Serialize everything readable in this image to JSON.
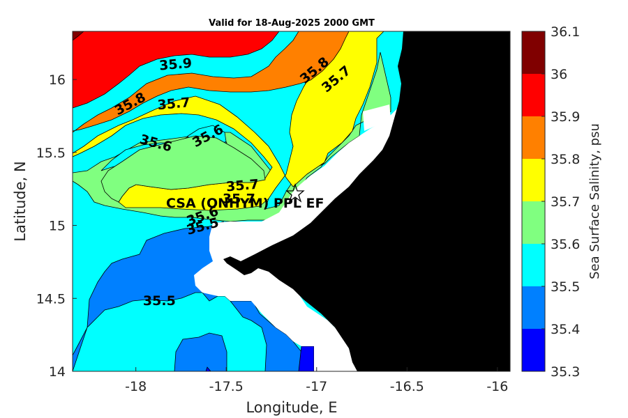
{
  "title": "Valid for 18-Aug-2025 2000 GMT",
  "chart_data": {
    "type": "heatmap",
    "title": "Valid for 18-Aug-2025 2000 GMT",
    "xlabel": "Longitude, E",
    "ylabel": "Latitude, N",
    "xlim": [
      -18.35,
      -15.93
    ],
    "ylim": [
      14.0,
      16.33
    ],
    "x_ticks": [
      "-18",
      "-17.5",
      "-17",
      "-16.5",
      "-16"
    ],
    "y_ticks": [
      "14",
      "14.5",
      "15",
      "15.5",
      "16"
    ],
    "colorbar": {
      "label": "Sea Surface Salinity, psu",
      "ticks": [
        "35.3",
        "35.4",
        "35.5",
        "35.6",
        "35.7",
        "35.8",
        "35.9",
        "36",
        "36.1"
      ],
      "bins": [
        {
          "from": 35.3,
          "to": 35.4,
          "color": "#0000ff"
        },
        {
          "from": 35.4,
          "to": 35.5,
          "color": "#0080ff"
        },
        {
          "from": 35.5,
          "to": 35.6,
          "color": "#00ffff"
        },
        {
          "from": 35.6,
          "to": 35.7,
          "color": "#80ff80"
        },
        {
          "from": 35.7,
          "to": 35.8,
          "color": "#ffff00"
        },
        {
          "from": 35.8,
          "to": 35.9,
          "color": "#ff8000"
        },
        {
          "from": 35.9,
          "to": 36.0,
          "color": "#ff0000"
        },
        {
          "from": 36.0,
          "to": 36.1,
          "color": "#800000"
        }
      ]
    },
    "contour_labels": [
      {
        "text": "35.9",
        "lon": -17.78,
        "lat": 16.1,
        "angle": -5
      },
      {
        "text": "35.8",
        "lon": -18.03,
        "lat": 15.83,
        "angle": -28
      },
      {
        "text": "35.7",
        "lon": -17.79,
        "lat": 15.83,
        "angle": -5
      },
      {
        "text": "35.8",
        "lon": -17.01,
        "lat": 16.06,
        "angle": -40
      },
      {
        "text": "35.7",
        "lon": -16.89,
        "lat": 16.0,
        "angle": -40
      },
      {
        "text": "35.6",
        "lon": -17.6,
        "lat": 15.61,
        "angle": -28
      },
      {
        "text": "35.6",
        "lon": -17.89,
        "lat": 15.56,
        "angle": 15
      },
      {
        "text": "35.7",
        "lon": -17.41,
        "lat": 15.27,
        "angle": -5
      },
      {
        "text": "35.7",
        "lon": -17.43,
        "lat": 15.18,
        "angle": 0
      },
      {
        "text": "35.6",
        "lon": -17.63,
        "lat": 15.06,
        "angle": -20
      },
      {
        "text": "35.5",
        "lon": -17.63,
        "lat": 14.99,
        "angle": -15
      },
      {
        "text": "35.5",
        "lon": -17.87,
        "lat": 14.48,
        "angle": 0
      }
    ],
    "stations": [
      {
        "name": "CSA (ONHYM) PPL EF",
        "lon": -17.08,
        "lat": 15.23,
        "symbol": "star"
      }
    ],
    "land_color": "#000000"
  },
  "colors": {
    "land": "#000000",
    "nodata": "#ffffff",
    "frame": "#262626"
  }
}
